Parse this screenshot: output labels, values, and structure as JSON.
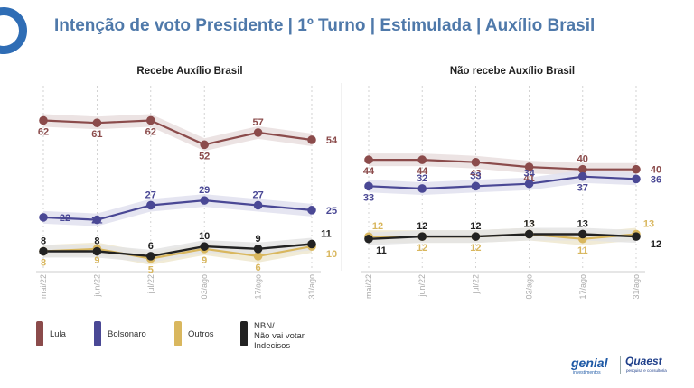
{
  "title": "Intenção de voto Presidente | 1º Turno | Estimulada | Auxílio Brasil",
  "colors": {
    "lula": "#8b4b4b",
    "bolsonaro": "#4a4895",
    "outros": "#d9b75e",
    "nbn": "#222222"
  },
  "legend": [
    {
      "key": "lula",
      "label": "Lula"
    },
    {
      "key": "bolsonaro",
      "label": "Bolsonaro"
    },
    {
      "key": "outros",
      "label": "Outros"
    },
    {
      "key": "nbn",
      "label": "NBN/\nNão vai votar\nIndecisos"
    }
  ],
  "logos": {
    "genial": "genial",
    "genial_sub": "investimentos",
    "quaest": "Quaest",
    "quaest_sub": "pesquisa e consultoria"
  },
  "chart_data": [
    {
      "type": "line",
      "title": "Recebe Auxílio Brasil",
      "x": [
        "mai/22",
        "jun/22",
        "jul/22",
        "03/ago",
        "17/ago",
        "31/ago"
      ],
      "ylim": [
        0,
        70
      ],
      "series": [
        {
          "name": "Lula",
          "key": "lula",
          "values": [
            62,
            61,
            62,
            52,
            57,
            54
          ]
        },
        {
          "name": "Bolsonaro",
          "key": "bolsonaro",
          "values": [
            22,
            21,
            27,
            29,
            27,
            25
          ]
        },
        {
          "name": "Outros",
          "key": "outros",
          "values": [
            8,
            9,
            5,
            9,
            6,
            10
          ]
        },
        {
          "name": "NBN/Não vai votar Indecisos",
          "key": "nbn",
          "values": [
            8,
            8,
            6,
            10,
            9,
            11
          ]
        }
      ]
    },
    {
      "type": "line",
      "title": "Não recebe Auxílio Brasil",
      "x": [
        "mai/22",
        "jun/22",
        "jul/22",
        "03/ago",
        "17/ago",
        "31/ago"
      ],
      "ylim": [
        0,
        70
      ],
      "series": [
        {
          "name": "Lula",
          "key": "lula",
          "values": [
            44,
            44,
            43,
            41,
            40,
            40
          ]
        },
        {
          "name": "Bolsonaro",
          "key": "bolsonaro",
          "values": [
            33,
            32,
            33,
            34,
            37,
            36
          ]
        },
        {
          "name": "Outros",
          "key": "outros",
          "values": [
            12,
            12,
            12,
            13,
            11,
            13
          ]
        },
        {
          "name": "NBN/Não vai votar Indecisos",
          "key": "nbn",
          "values": [
            11,
            12,
            12,
            13,
            13,
            12
          ]
        }
      ]
    }
  ]
}
